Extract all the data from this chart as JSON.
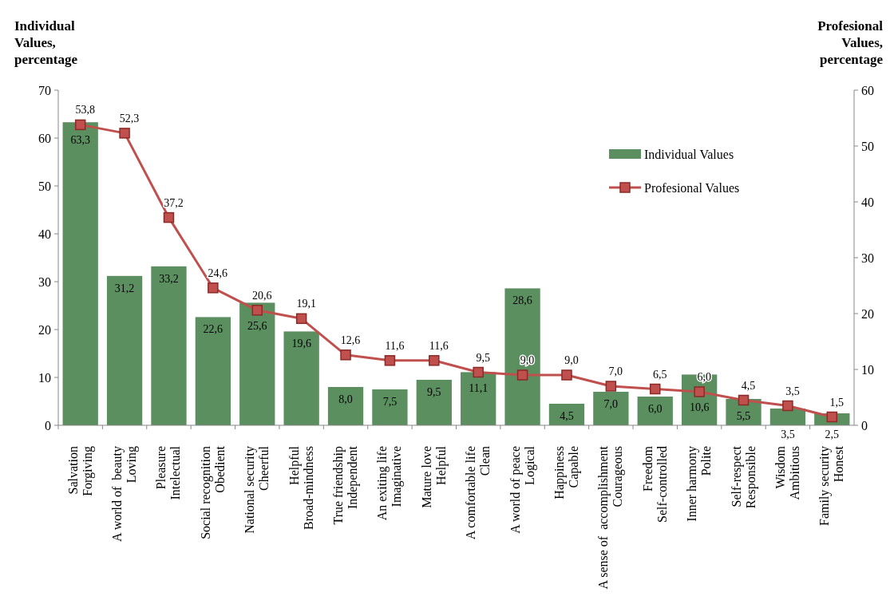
{
  "chart_data": {
    "type": "bar",
    "categories": [
      "Salvation\nForgiving",
      "A world of  beauty\nLoving",
      "Pleasure\nIntelectual",
      "Social recognition\nObedient",
      "National security\nCheerful",
      "Helpful\nBroad-mindness",
      "True friendship\nIndependent",
      "An exiting life\nImaginative",
      "Mature love\nHelpful",
      "A comfortable life\nClean",
      "A world of peace\nLogical",
      "Happiness\nCapable",
      "A sense of  accomplishment\nCourageous",
      "Freedom\nSelf-controlled",
      "Inner harmony\nPolite",
      "Self-respect\nResponsible",
      "Wisdom\nAmbitious",
      "Family security\nHonest"
    ],
    "series": [
      {
        "name": "Individual Values",
        "color": "#5b8f5f",
        "values": [
          63.3,
          31.2,
          33.2,
          22.6,
          25.6,
          19.6,
          8.0,
          7.5,
          9.5,
          11.1,
          28.6,
          4.5,
          7.0,
          6.0,
          10.6,
          5.5,
          3.5,
          2.5
        ],
        "value_labels": [
          "63,3",
          "31,2",
          "33,2",
          "22,6",
          "25,6",
          "19,6",
          "8,0",
          "7,5",
          "9,5",
          "11,1",
          "28,6",
          "4,5",
          "7,0",
          "6,0",
          "10,6",
          "5,5",
          "3,5",
          "2,5"
        ]
      },
      {
        "name": "Profesional Values",
        "type": "line",
        "axis": "y2",
        "color": "#c0504d",
        "values": [
          53.8,
          52.3,
          37.2,
          24.6,
          20.6,
          19.1,
          12.6,
          11.6,
          11.6,
          9.5,
          9.0,
          9.0,
          7.0,
          6.5,
          6.0,
          4.5,
          3.5,
          1.5
        ],
        "value_labels": [
          "53,8",
          "52,3",
          "37,2",
          "24,6",
          "20,6",
          "19,1",
          "12,6",
          "11,6",
          "11,6",
          "9,5",
          "9,0",
          "9,0",
          "7,0",
          "6,5",
          "6,0",
          "4,5",
          "3,5",
          "1,5"
        ]
      }
    ],
    "ylabel": "Individual Values, percentage",
    "y2label": "Profesional Values, percentage",
    "ylim": [
      0,
      70
    ],
    "yticks": [
      0,
      10,
      20,
      30,
      40,
      50,
      60,
      70
    ],
    "y2lim": [
      0,
      60
    ],
    "y2ticks": [
      0,
      10,
      20,
      30,
      40,
      50,
      60
    ],
    "legend": "top right",
    "marker": "square",
    "grid": false
  }
}
